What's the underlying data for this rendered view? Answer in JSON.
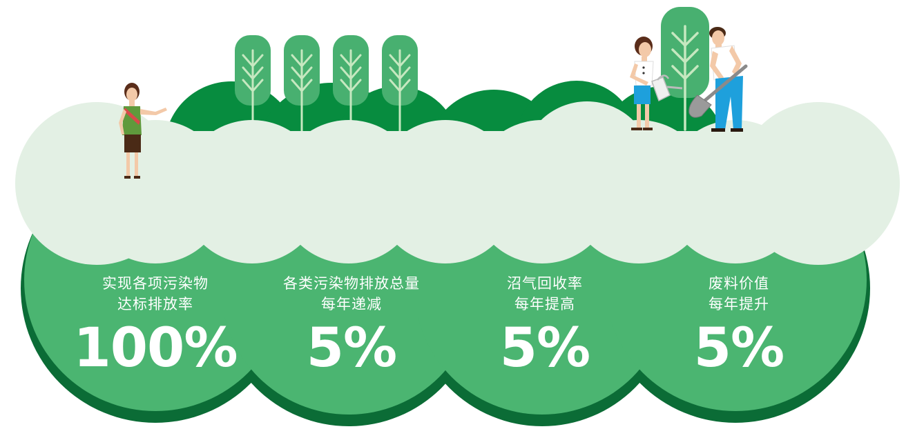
{
  "colors": {
    "dark_green": "#078c3f",
    "bush_green": "#4bb571",
    "tree_green": "#48b070",
    "pale_green": "#e3f0e4",
    "shadow_green": "#0b6c36",
    "branch": "#c6e8c0"
  },
  "stats": [
    {
      "label": "实现各项污染物\n达标排放率",
      "value": "100%"
    },
    {
      "label": "各类污染物排放总量\n每年递减",
      "value": "5%"
    },
    {
      "label": "沼气回收率\n每年提高",
      "value": "5%"
    },
    {
      "label": "废料价值\n每年提升",
      "value": "5%"
    }
  ],
  "illustration": {
    "trees": [
      "tree-icon",
      "tree-icon",
      "tree-icon",
      "tree-icon",
      "tree-icon"
    ],
    "people": [
      "pointing-woman-icon",
      "watering-girl-icon",
      "digging-man-icon"
    ],
    "tools": [
      "watering-can-icon",
      "shovel-icon"
    ]
  }
}
